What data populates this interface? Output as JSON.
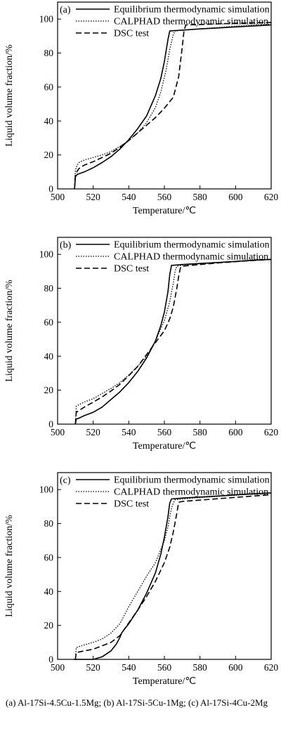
{
  "chart_data": [
    {
      "type": "line",
      "panel": "(a)",
      "xlabel": "Temperature/℃",
      "ylabel": "Liquid volume fraction/%",
      "xlim": [
        500,
        620
      ],
      "ylim": [
        0,
        110
      ],
      "xticks": [
        500,
        520,
        540,
        560,
        580,
        600,
        620
      ],
      "yticks": [
        0,
        20,
        40,
        60,
        80,
        100
      ],
      "legend": "top-left",
      "grid": false,
      "series": [
        {
          "name": "Equilibrium thermodynamic simulation",
          "style": "solid",
          "x": [
            509.5,
            510,
            511,
            515,
            520,
            525,
            530,
            535,
            540,
            545,
            550,
            555,
            558,
            560,
            562,
            563,
            570,
            580,
            590,
            600,
            610,
            620
          ],
          "y": [
            0,
            7,
            8.5,
            10,
            12.5,
            15.5,
            19,
            23.5,
            29,
            35.5,
            43,
            55,
            65,
            75,
            88,
            93,
            93.5,
            94.2,
            94.8,
            95.4,
            96,
            96.5
          ]
        },
        {
          "name": "CALPHAD thermodynamic simulation",
          "style": "dotted",
          "x": [
            509.5,
            510,
            511,
            512,
            515,
            520,
            525,
            530,
            535,
            540,
            545,
            550,
            555,
            558,
            561,
            563,
            565,
            566,
            570,
            580,
            590,
            600,
            610,
            620
          ],
          "y": [
            0,
            11,
            14,
            15.5,
            17,
            18.5,
            20,
            22,
            25,
            28.5,
            33,
            39,
            48,
            57,
            70,
            82,
            91,
            93,
            93.5,
            94.3,
            95,
            95.8,
            96.4,
            97
          ]
        },
        {
          "name": "DSC test",
          "style": "dashed",
          "x": [
            509.5,
            510,
            511,
            512,
            515,
            520,
            525,
            530,
            535,
            540,
            545,
            550,
            555,
            560,
            565,
            568,
            570,
            571,
            572,
            580,
            590,
            600,
            610,
            620
          ],
          "y": [
            0,
            8,
            10.5,
            12,
            14,
            16,
            18.5,
            21,
            24.5,
            28.5,
            33,
            37.5,
            42,
            47.5,
            54,
            66,
            83,
            93,
            96.5,
            96.8,
            97.2,
            97.5,
            97.8,
            98
          ]
        }
      ]
    },
    {
      "type": "line",
      "panel": "(b)",
      "xlabel": "Temperature/℃",
      "ylabel": "Liquid volume fraction/%",
      "xlim": [
        500,
        620
      ],
      "ylim": [
        0,
        110
      ],
      "xticks": [
        500,
        520,
        540,
        560,
        580,
        600,
        620
      ],
      "yticks": [
        0,
        20,
        40,
        60,
        80,
        100
      ],
      "legend": "top-left",
      "grid": false,
      "series": [
        {
          "name": "Equilibrium thermodynamic simulation",
          "style": "solid",
          "x": [
            510,
            510.5,
            512,
            515,
            520,
            525,
            530,
            535,
            540,
            545,
            550,
            555,
            558,
            560,
            562,
            563,
            564,
            570,
            580,
            590,
            600,
            610,
            620
          ],
          "y": [
            0,
            3,
            3.5,
            5,
            7,
            10,
            14.5,
            19,
            24.5,
            31,
            39,
            49,
            58,
            66,
            78,
            88,
            93.5,
            94,
            94.6,
            95.2,
            95.8,
            96.5,
            97
          ]
        },
        {
          "name": "CALPHAD thermodynamic simulation",
          "style": "dotted",
          "x": [
            510,
            510.5,
            512,
            515,
            520,
            525,
            530,
            535,
            540,
            545,
            550,
            555,
            560,
            563,
            565,
            566,
            567,
            570,
            580,
            590,
            600,
            610,
            620
          ],
          "y": [
            0,
            10.5,
            11.5,
            13,
            15,
            18,
            21,
            24.5,
            29,
            34,
            40,
            49,
            61,
            72,
            83,
            90,
            93,
            93.6,
            94.4,
            95.1,
            95.8,
            96.5,
            97
          ]
        },
        {
          "name": "DSC test",
          "style": "dashed",
          "x": [
            510,
            510.5,
            512,
            515,
            520,
            525,
            530,
            535,
            540,
            545,
            550,
            555,
            560,
            563,
            565,
            567,
            568,
            569,
            570,
            580,
            590,
            600,
            610,
            620
          ],
          "y": [
            0,
            7,
            8,
            10,
            13,
            16,
            19.5,
            23.5,
            28.5,
            34,
            41,
            48,
            55,
            62,
            69,
            80,
            87,
            92,
            93,
            94,
            94.9,
            95.7,
            96.4,
            97
          ]
        }
      ]
    },
    {
      "type": "line",
      "panel": "(c)",
      "xlabel": "Temperature/℃",
      "ylabel": "Liquid volume fraction/%",
      "xlim": [
        500,
        620
      ],
      "ylim": [
        0,
        110
      ],
      "xticks": [
        500,
        520,
        540,
        560,
        580,
        600,
        620
      ],
      "yticks": [
        0,
        20,
        40,
        60,
        80,
        100
      ],
      "legend": "top-left",
      "grid": false,
      "series": [
        {
          "name": "Equilibrium thermodynamic simulation",
          "style": "solid",
          "x": [
            509,
            520,
            525,
            530,
            533,
            535,
            536,
            537,
            540,
            545,
            550,
            555,
            558,
            560,
            562,
            563,
            564,
            570,
            580,
            590,
            600,
            610,
            620
          ],
          "y": [
            0,
            0,
            1.5,
            5,
            9,
            13,
            15.5,
            17,
            21,
            29,
            39,
            51,
            62,
            72,
            84,
            92,
            94.5,
            95,
            95.6,
            96.2,
            96.9,
            97.5,
            98
          ]
        },
        {
          "name": "CALPHAD thermodynamic simulation",
          "style": "dotted",
          "x": [
            510,
            510.5,
            515,
            520,
            525,
            530,
            535,
            540,
            545,
            550,
            555,
            560,
            562,
            563,
            564,
            565,
            566,
            570,
            580,
            590,
            600,
            610,
            620
          ],
          "y": [
            0,
            7,
            8.5,
            10,
            12,
            15.5,
            21,
            31,
            40,
            49,
            57,
            70,
            78,
            84,
            89,
            92,
            94,
            94.5,
            95.3,
            96,
            96.7,
            97.4,
            98
          ]
        },
        {
          "name": "DSC test",
          "style": "dashed",
          "x": [
            510,
            510.5,
            515,
            520,
            525,
            530,
            535,
            540,
            545,
            550,
            555,
            560,
            563,
            565,
            567,
            568,
            570,
            580,
            590,
            600,
            610,
            620
          ],
          "y": [
            0,
            4,
            5,
            6,
            8,
            10,
            14,
            21.5,
            29,
            37,
            46,
            57,
            66,
            75,
            86,
            92.5,
            93,
            93.8,
            94.6,
            95.4,
            96.2,
            97
          ]
        }
      ]
    }
  ],
  "caption": "(a) Al-17Si-4.5Cu-1.5Mg; (b) Al-17Si-5Cu-1Mg; (c) Al-17Si-4Cu-2Mg"
}
